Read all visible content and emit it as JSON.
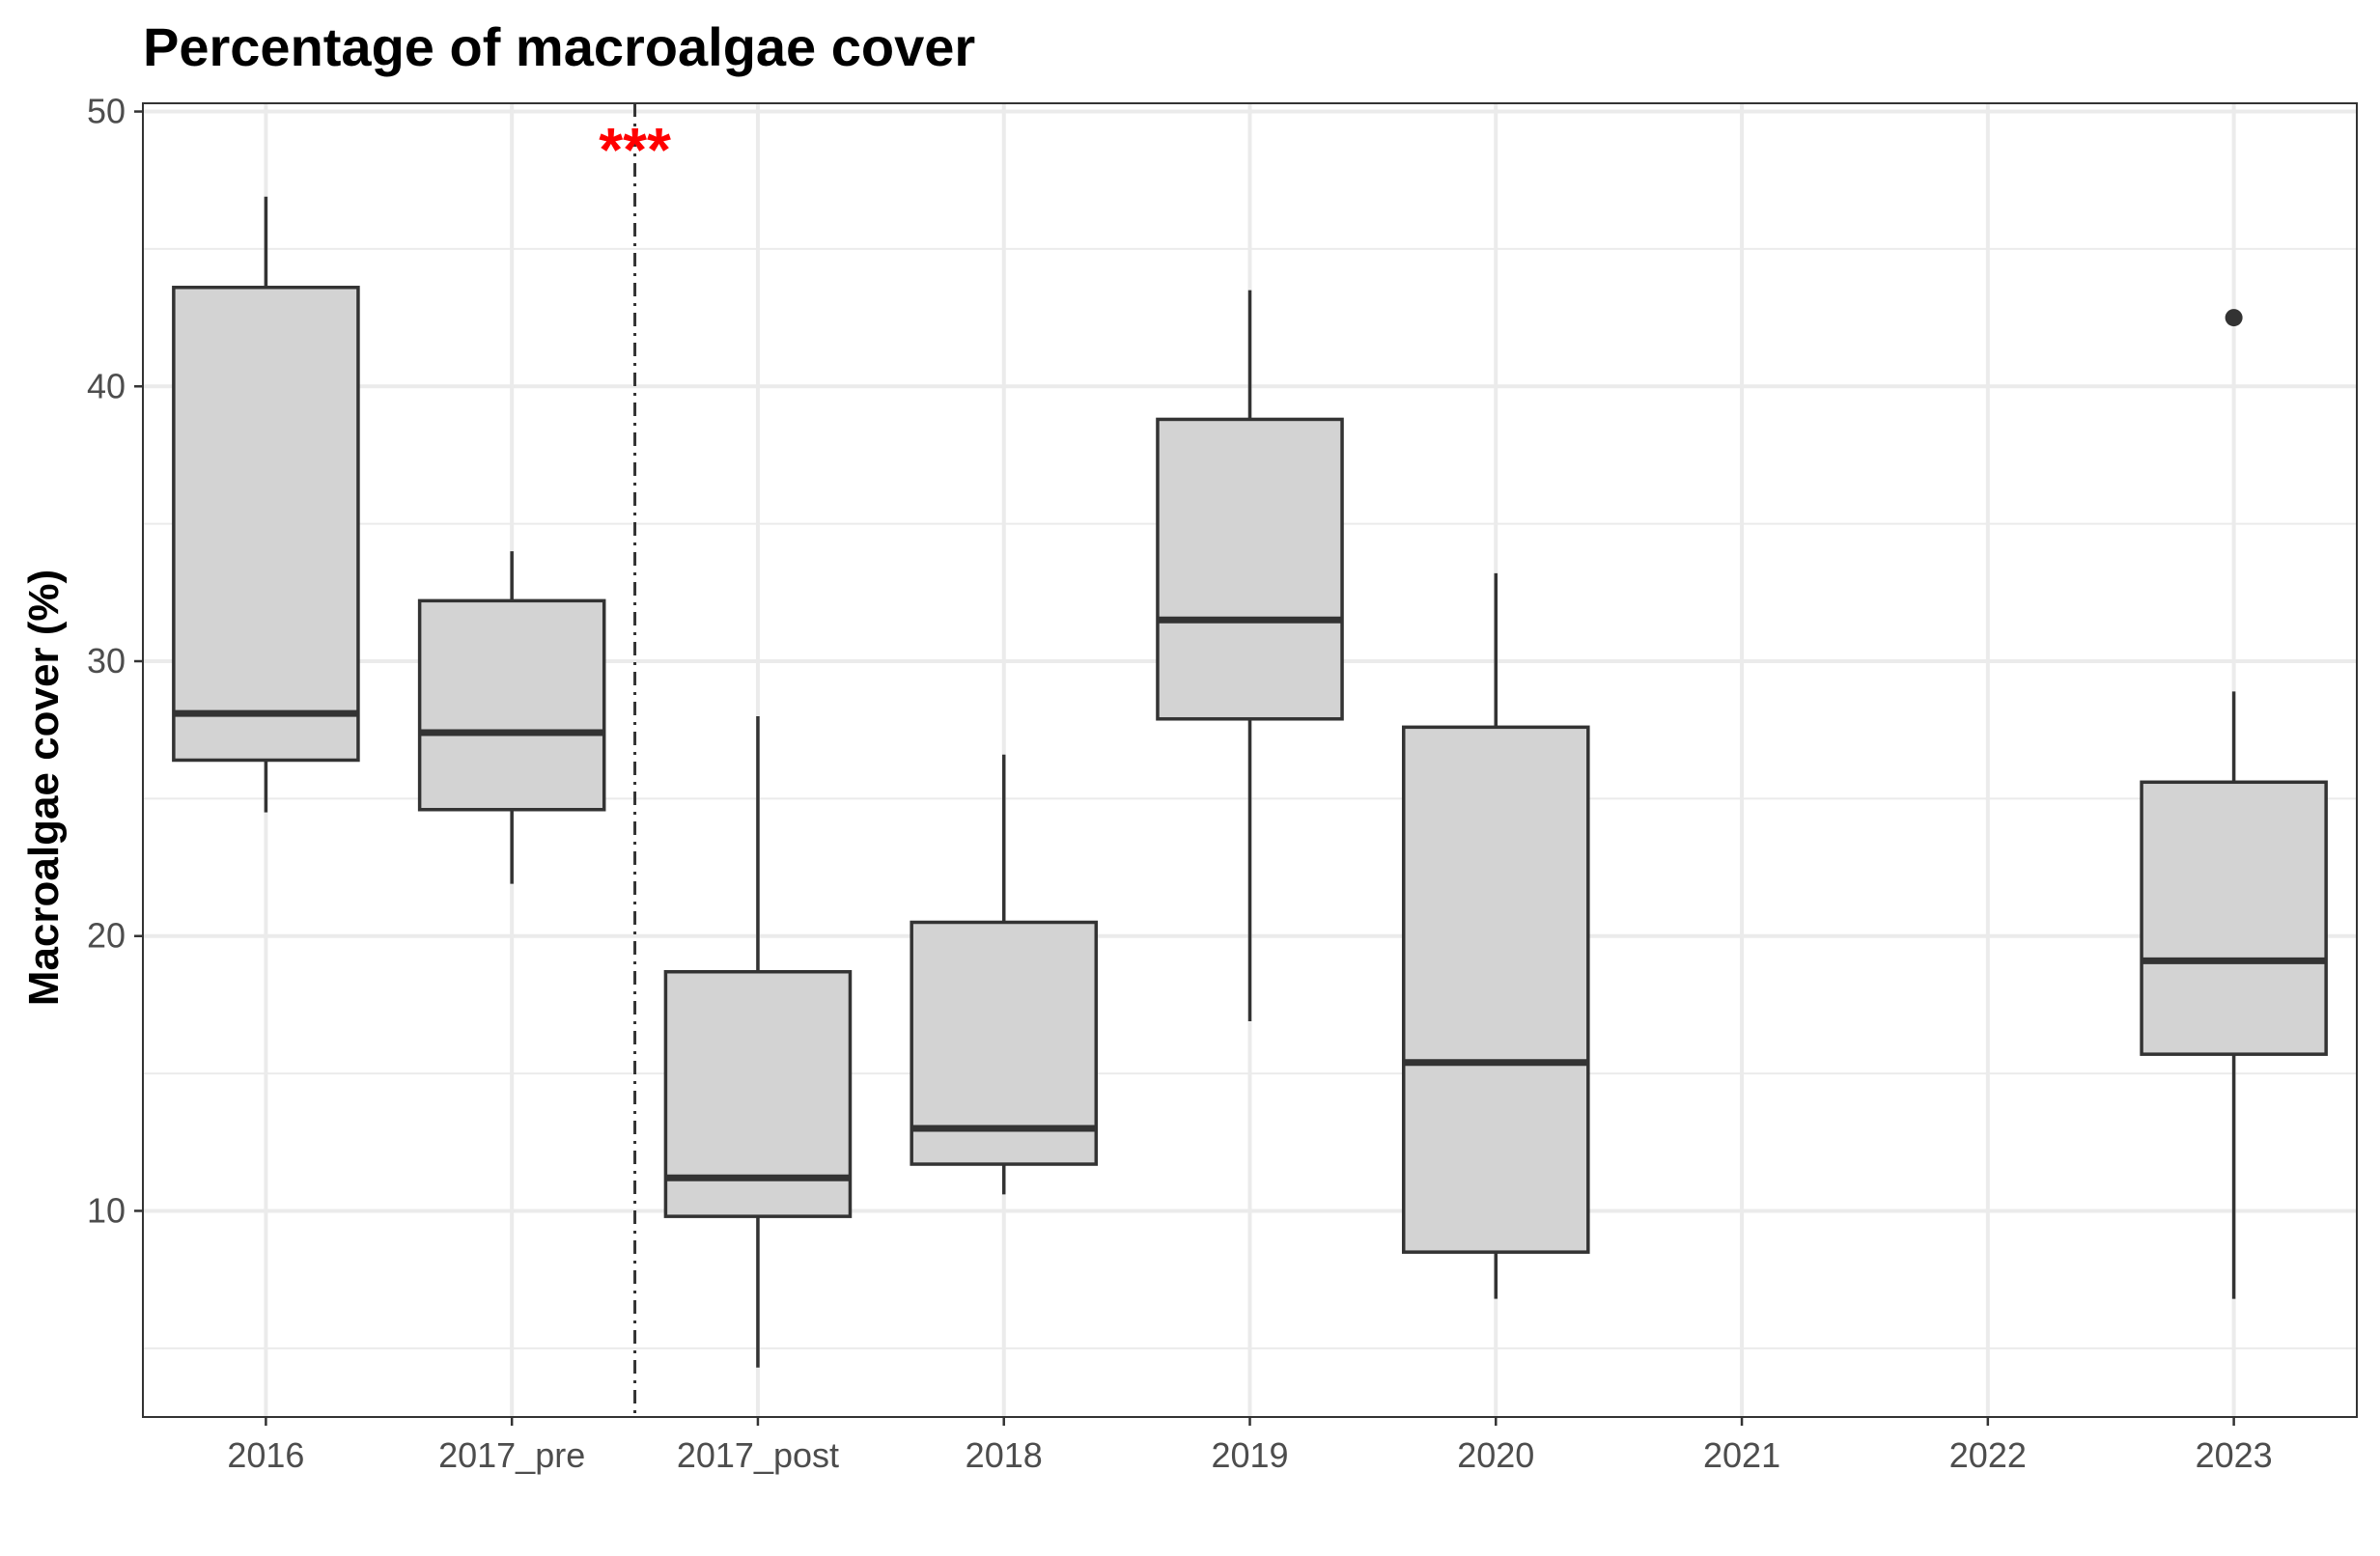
{
  "chart_data": {
    "type": "box",
    "title": "Percentage of macroalgae cover",
    "xlabel": "",
    "ylabel": "Macroalgae cover (%)",
    "categories": [
      "2016",
      "2017_pre",
      "2017_post",
      "2018",
      "2019",
      "2020",
      "2021",
      "2022",
      "2023"
    ],
    "boxes": [
      {
        "category": "2016",
        "whisker_low": 24.5,
        "q1": 26.4,
        "median": 28.1,
        "q3": 43.6,
        "whisker_high": 46.9,
        "outliers": []
      },
      {
        "category": "2017_pre",
        "whisker_low": 21.9,
        "q1": 24.6,
        "median": 27.4,
        "q3": 32.2,
        "whisker_high": 34.0,
        "outliers": []
      },
      {
        "category": "2017_post",
        "whisker_low": 4.3,
        "q1": 9.8,
        "median": 11.2,
        "q3": 18.7,
        "whisker_high": 28.0,
        "outliers": []
      },
      {
        "category": "2018",
        "whisker_low": 10.6,
        "q1": 11.7,
        "median": 13.0,
        "q3": 20.5,
        "whisker_high": 26.6,
        "outliers": []
      },
      {
        "category": "2019",
        "whisker_low": 16.9,
        "q1": 27.9,
        "median": 31.5,
        "q3": 38.8,
        "whisker_high": 43.5,
        "outliers": []
      },
      {
        "category": "2020",
        "whisker_low": 6.8,
        "q1": 8.5,
        "median": 15.4,
        "q3": 27.6,
        "whisker_high": 33.2,
        "outliers": []
      },
      {
        "category": "2023",
        "whisker_low": 6.8,
        "q1": 15.7,
        "median": 19.1,
        "q3": 25.6,
        "whisker_high": 28.9,
        "outliers": [
          42.5
        ]
      }
    ],
    "ylim": [
      2.5,
      50.3
    ],
    "yticks": [
      10,
      20,
      30,
      40,
      50
    ],
    "grid": true,
    "legend": "none",
    "vline": {
      "between": [
        "2017_pre",
        "2017_post"
      ],
      "style": "dashdot",
      "color": "#333333"
    },
    "annotation": {
      "text": "***",
      "color": "#ff0000",
      "position": "top, at vertical line"
    },
    "colors": {
      "box_fill": "#d3d3d3",
      "box_stroke": "#333333",
      "grid": "#ebebeb",
      "panel_border": "#333333"
    }
  }
}
